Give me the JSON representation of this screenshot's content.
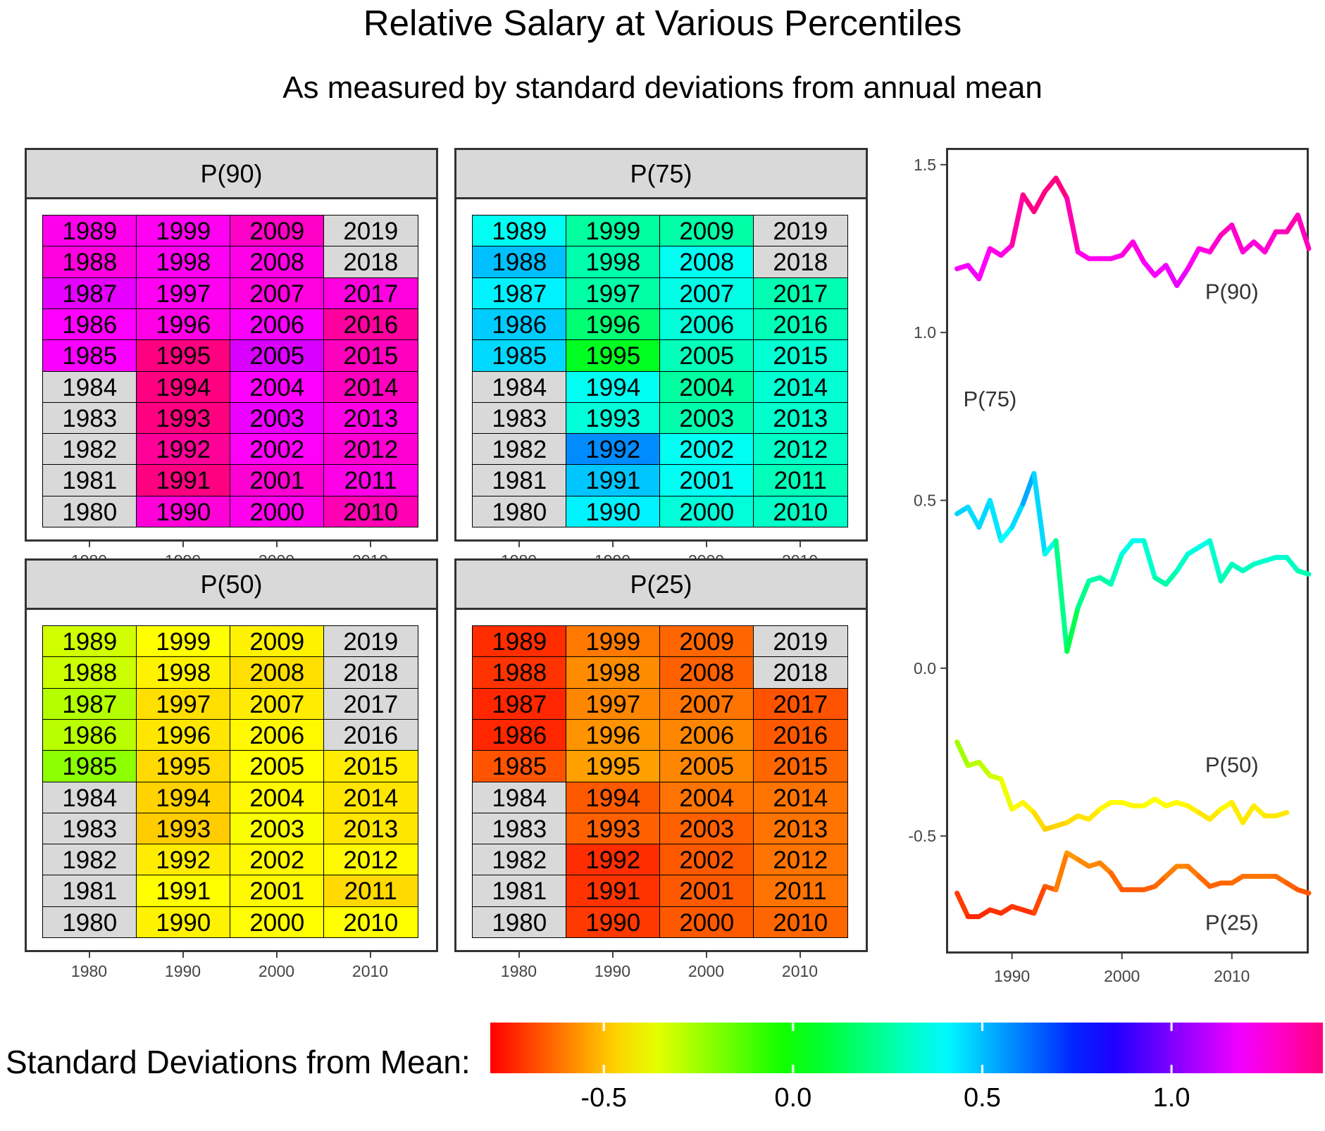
{
  "title": "Relative Salary at Various Percentiles",
  "subtitle": "As measured by standard deviations from annual mean",
  "legend": {
    "title": "Standard Deviations from Mean:",
    "ticks": [
      -0.5,
      0.0,
      0.5,
      1.0
    ],
    "tick_labels": [
      "-0.5",
      "0.0",
      "0.5",
      "1.0"
    ],
    "range": [
      -0.8,
      1.4
    ]
  },
  "chart_data": [
    {
      "type": "heatmap",
      "facet": "P(90)",
      "x_ticks": [
        "1980",
        "1990",
        "2000",
        "2010"
      ],
      "decades": [
        1980,
        1990,
        2000,
        2010
      ],
      "values": {
        "1980": [
          null,
          null,
          null,
          null,
          null,
          1.19,
          1.2,
          1.16,
          1.25,
          1.23
        ],
        "1990": [
          1.26,
          1.41,
          1.36,
          1.42,
          1.46,
          1.4,
          1.24,
          1.22,
          1.22,
          1.22
        ],
        "2000": [
          1.23,
          1.27,
          1.21,
          1.17,
          1.2,
          1.14,
          1.19,
          1.25,
          1.24,
          1.29
        ],
        "2010": [
          1.32,
          1.24,
          1.27,
          1.24,
          1.3,
          1.3,
          1.35,
          1.25,
          null,
          null
        ]
      }
    },
    {
      "type": "heatmap",
      "facet": "P(75)",
      "x_ticks": [
        "1980",
        "1990",
        "2000",
        "2010"
      ],
      "decades": [
        1980,
        1990,
        2000,
        2010
      ],
      "values": {
        "1980": [
          null,
          null,
          null,
          null,
          null,
          0.46,
          0.48,
          0.42,
          0.5,
          0.38
        ],
        "1990": [
          0.42,
          0.49,
          0.58,
          0.34,
          0.38,
          0.05,
          0.18,
          0.26,
          0.27,
          0.25
        ],
        "2000": [
          0.34,
          0.38,
          0.38,
          0.27,
          0.25,
          0.29,
          0.34,
          0.36,
          0.38,
          0.26
        ],
        "2010": [
          0.31,
          0.29,
          0.31,
          0.32,
          0.33,
          0.33,
          0.29,
          0.28,
          null,
          null
        ]
      }
    },
    {
      "type": "heatmap",
      "facet": "P(50)",
      "x_ticks": [
        "1980",
        "1990",
        "2000",
        "2010"
      ],
      "decades": [
        1980,
        1990,
        2000,
        2010
      ],
      "values": {
        "1980": [
          null,
          null,
          null,
          null,
          null,
          -0.22,
          -0.29,
          -0.28,
          -0.32,
          -0.33
        ],
        "1990": [
          -0.42,
          -0.4,
          -0.43,
          -0.48,
          -0.47,
          -0.46,
          -0.44,
          -0.45,
          -0.42,
          -0.4
        ],
        "2000": [
          -0.4,
          -0.41,
          -0.41,
          -0.39,
          -0.41,
          -0.4,
          -0.41,
          -0.43,
          -0.45,
          -0.42
        ],
        "2010": [
          -0.4,
          -0.46,
          -0.41,
          -0.44,
          -0.44,
          -0.43,
          null,
          null,
          null,
          null
        ]
      }
    },
    {
      "type": "heatmap",
      "facet": "P(25)",
      "x_ticks": [
        "1980",
        "1990",
        "2000",
        "2010"
      ],
      "decades": [
        1980,
        1990,
        2000,
        2010
      ],
      "values": {
        "1980": [
          null,
          null,
          null,
          null,
          null,
          -0.67,
          -0.74,
          -0.74,
          -0.72,
          -0.73
        ],
        "1990": [
          -0.71,
          -0.72,
          -0.73,
          -0.65,
          -0.66,
          -0.55,
          -0.57,
          -0.59,
          -0.58,
          -0.61
        ],
        "2000": [
          -0.66,
          -0.66,
          -0.66,
          -0.65,
          -0.62,
          -0.59,
          -0.59,
          -0.62,
          -0.65,
          -0.64
        ],
        "2010": [
          -0.64,
          -0.62,
          -0.62,
          -0.62,
          -0.62,
          -0.64,
          -0.66,
          -0.67,
          null,
          null
        ]
      }
    },
    {
      "type": "line",
      "x_ticks": [
        "1990",
        "2000",
        "2010"
      ],
      "y_ticks": [
        "1.5",
        "1.0",
        "0.5",
        "0.0",
        "-0.5"
      ],
      "xlim": [
        1984,
        2017
      ],
      "ylim": [
        -0.85,
        1.55
      ],
      "label_positions": [
        {
          "name": "P(90)",
          "x": 2010,
          "y": 1.1
        },
        {
          "name": "P(75)",
          "x": 1988,
          "y": 0.78
        },
        {
          "name": "P(50)",
          "x": 2010,
          "y": -0.31
        },
        {
          "name": "P(25)",
          "x": 2010,
          "y": -0.78
        }
      ],
      "series": [
        {
          "name": "P(90)",
          "x": [
            1985,
            1986,
            1987,
            1988,
            1989,
            1990,
            1991,
            1992,
            1993,
            1994,
            1995,
            1996,
            1997,
            1998,
            1999,
            2000,
            2001,
            2002,
            2003,
            2004,
            2005,
            2006,
            2007,
            2008,
            2009,
            2010,
            2011,
            2012,
            2013,
            2014,
            2015,
            2016,
            2017
          ],
          "y": [
            1.19,
            1.2,
            1.16,
            1.25,
            1.23,
            1.26,
            1.41,
            1.36,
            1.42,
            1.46,
            1.4,
            1.24,
            1.22,
            1.22,
            1.22,
            1.23,
            1.27,
            1.21,
            1.17,
            1.2,
            1.14,
            1.19,
            1.25,
            1.24,
            1.29,
            1.32,
            1.24,
            1.27,
            1.24,
            1.3,
            1.3,
            1.35,
            1.25
          ]
        },
        {
          "name": "P(75)",
          "x": [
            1985,
            1986,
            1987,
            1988,
            1989,
            1990,
            1991,
            1992,
            1993,
            1994,
            1995,
            1996,
            1997,
            1998,
            1999,
            2000,
            2001,
            2002,
            2003,
            2004,
            2005,
            2006,
            2007,
            2008,
            2009,
            2010,
            2011,
            2012,
            2013,
            2014,
            2015,
            2016,
            2017
          ],
          "y": [
            0.46,
            0.48,
            0.42,
            0.5,
            0.38,
            0.42,
            0.49,
            0.58,
            0.34,
            0.38,
            0.05,
            0.18,
            0.26,
            0.27,
            0.25,
            0.34,
            0.38,
            0.38,
            0.27,
            0.25,
            0.29,
            0.34,
            0.36,
            0.38,
            0.26,
            0.31,
            0.29,
            0.31,
            0.32,
            0.33,
            0.33,
            0.29,
            0.28
          ]
        },
        {
          "name": "P(50)",
          "x": [
            1985,
            1986,
            1987,
            1988,
            1989,
            1990,
            1991,
            1992,
            1993,
            1994,
            1995,
            1996,
            1997,
            1998,
            1999,
            2000,
            2001,
            2002,
            2003,
            2004,
            2005,
            2006,
            2007,
            2008,
            2009,
            2010,
            2011,
            2012,
            2013,
            2014,
            2015
          ],
          "y": [
            -0.22,
            -0.29,
            -0.28,
            -0.32,
            -0.33,
            -0.42,
            -0.4,
            -0.43,
            -0.48,
            -0.47,
            -0.46,
            -0.44,
            -0.45,
            -0.42,
            -0.4,
            -0.4,
            -0.41,
            -0.41,
            -0.39,
            -0.41,
            -0.4,
            -0.41,
            -0.43,
            -0.45,
            -0.42,
            -0.4,
            -0.46,
            -0.41,
            -0.44,
            -0.44,
            -0.43
          ]
        },
        {
          "name": "P(25)",
          "x": [
            1985,
            1986,
            1987,
            1988,
            1989,
            1990,
            1991,
            1992,
            1993,
            1994,
            1995,
            1996,
            1997,
            1998,
            1999,
            2000,
            2001,
            2002,
            2003,
            2004,
            2005,
            2006,
            2007,
            2008,
            2009,
            2010,
            2011,
            2012,
            2013,
            2014,
            2015,
            2016,
            2017
          ],
          "y": [
            -0.67,
            -0.74,
            -0.74,
            -0.72,
            -0.73,
            -0.71,
            -0.72,
            -0.73,
            -0.65,
            -0.66,
            -0.55,
            -0.57,
            -0.59,
            -0.58,
            -0.61,
            -0.66,
            -0.66,
            -0.66,
            -0.65,
            -0.62,
            -0.59,
            -0.59,
            -0.62,
            -0.65,
            -0.64,
            -0.64,
            -0.62,
            -0.62,
            -0.62,
            -0.62,
            -0.64,
            -0.66,
            -0.67
          ]
        }
      ]
    }
  ]
}
